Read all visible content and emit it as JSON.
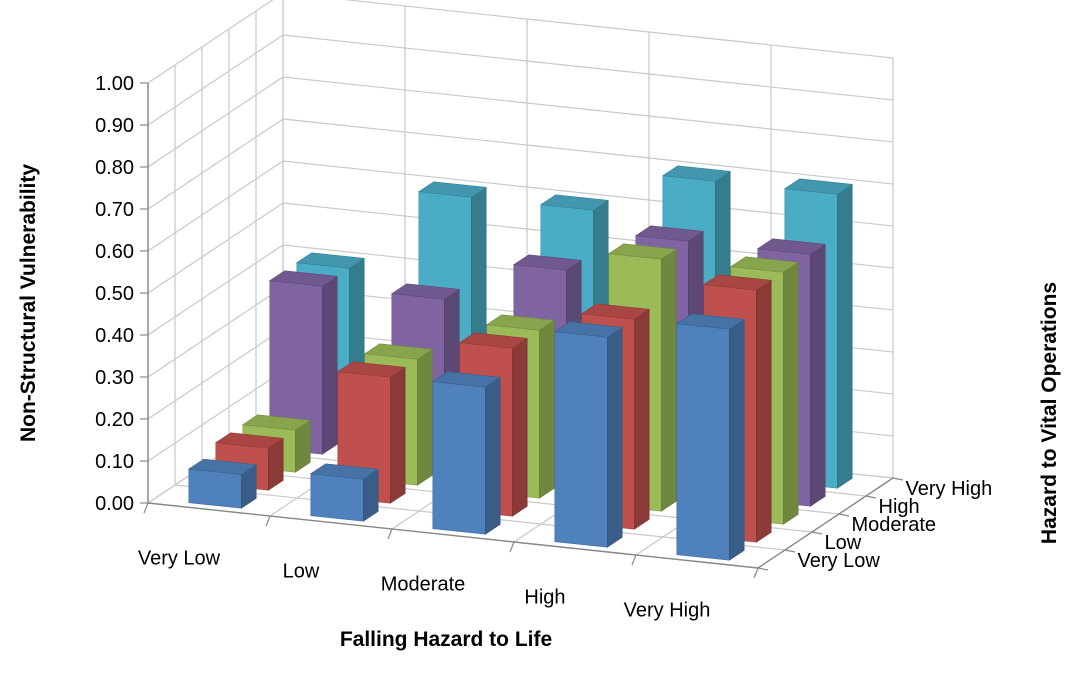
{
  "chart_data": {
    "type": "bar",
    "style": "3d-column",
    "x_axis": {
      "title": "Falling Hazard to Life",
      "categories": [
        "Very Low",
        "Low",
        "Moderate",
        "High",
        "Very High"
      ]
    },
    "depth_axis": {
      "title": "Hazard to Vital Operations",
      "categories": [
        "Very Low",
        "Low",
        "Moderate",
        "High",
        "Very High"
      ]
    },
    "y_axis": {
      "title": "Non-Structural Vulnerability",
      "ylim": [
        0,
        1.0
      ],
      "ticks": [
        "0.00",
        "0.10",
        "0.20",
        "0.30",
        "0.40",
        "0.50",
        "0.60",
        "0.70",
        "0.80",
        "0.90",
        "1.00"
      ]
    },
    "grid": true,
    "legend": "none",
    "series": [
      {
        "depth_index": 0,
        "color": "#4F81BD",
        "values": [
          0.08,
          0.1,
          0.35,
          0.5,
          0.55
        ]
      },
      {
        "depth_index": 1,
        "color": "#C0504D",
        "values": [
          0.1,
          0.3,
          0.4,
          0.5,
          0.6
        ]
      },
      {
        "depth_index": 2,
        "color": "#9BBB59",
        "values": [
          0.1,
          0.3,
          0.4,
          0.6,
          0.6
        ]
      },
      {
        "depth_index": 3,
        "color": "#8064A2",
        "values": [
          0.4,
          0.4,
          0.5,
          0.6,
          0.6
        ]
      },
      {
        "depth_index": 4,
        "color": "#4BACC6",
        "values": [
          0.4,
          0.6,
          0.6,
          0.7,
          0.7
        ]
      }
    ]
  }
}
